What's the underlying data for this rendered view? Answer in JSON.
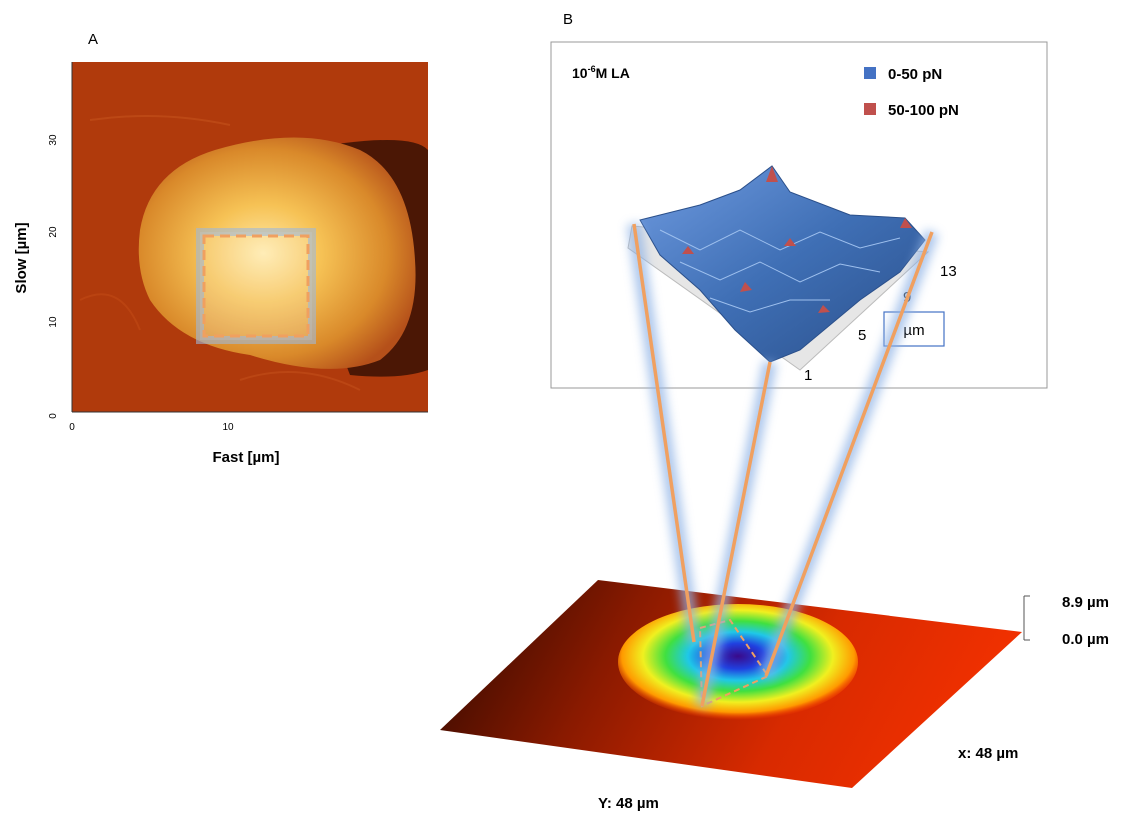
{
  "panel_a": {
    "letter": "A",
    "y_axis_title": "Slow [µm]",
    "x_axis_title": "Fast [µm]",
    "y_ticks": [
      "0",
      "10",
      "20",
      "30"
    ],
    "x_ticks": [
      "0",
      "10"
    ]
  },
  "panel_b": {
    "letter": "B",
    "inset_title_base": "10",
    "inset_title_exp": "-6",
    "inset_title_rest": "M LA",
    "legend": [
      {
        "label": "0-50  pN",
        "color": "#4472c4"
      },
      {
        "label": "50-100  pN",
        "color": "#c0504d"
      }
    ],
    "depth_ticks": [
      "1",
      "5",
      "9",
      "13"
    ],
    "depth_unit": "µm",
    "height_max": "8.9 µm",
    "height_min": "0.0 µm",
    "x_extent": "x: 48 µm",
    "y_extent": "Y: 48 µm"
  },
  "colors": {
    "afm_background": "#b03a0c",
    "afm_cell": "#f0a83a",
    "surface_blue": "#3f6fb5",
    "connector": "#f0a060",
    "glow": "#8fb3e6"
  }
}
